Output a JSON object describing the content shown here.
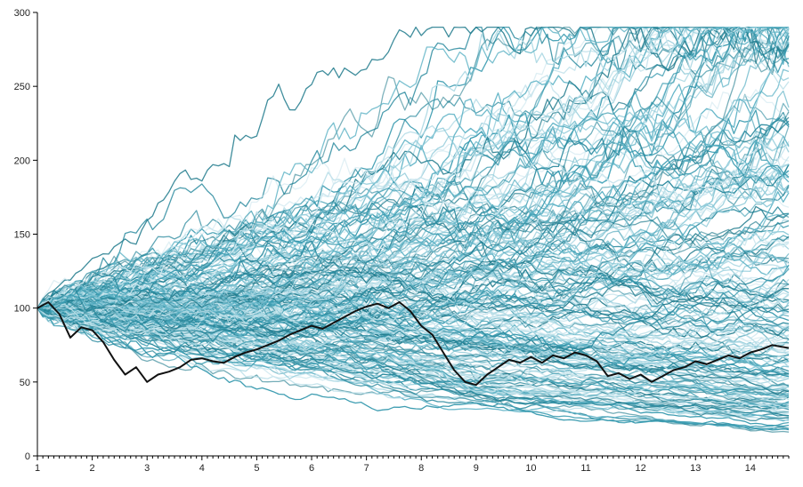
{
  "chart_data": {
    "type": "line",
    "title": "",
    "xlabel": "",
    "ylabel": "",
    "xlim": [
      1,
      14.7
    ],
    "ylim": [
      0,
      300
    ],
    "x_ticks": [
      "1",
      "2",
      "3",
      "4",
      "5",
      "6",
      "7",
      "8",
      "9",
      "10",
      "11",
      "12",
      "13",
      "14"
    ],
    "y_ticks": [
      "0",
      "50",
      "100",
      "150",
      "200",
      "250",
      "300"
    ],
    "grid": false,
    "legend": "none",
    "series_style": {
      "simulated_palette": [
        "#2b8a9e",
        "#3a9bb0",
        "#5fb3c6",
        "#8cc9d8",
        "#b4dce6",
        "#cbe6ee",
        "#1f7a8c"
      ],
      "highlight_color": "#111111"
    },
    "simulated_paths": {
      "count": 220,
      "start_value": 100,
      "steps_per_unit": 10,
      "description_visible": "many simulated paths fanning out from 100"
    },
    "highlight_series": {
      "x": [
        1.0,
        1.2,
        1.4,
        1.6,
        1.8,
        2.0,
        2.2,
        2.4,
        2.6,
        2.8,
        3.0,
        3.2,
        3.4,
        3.6,
        3.8,
        4.0,
        4.2,
        4.4,
        4.6,
        4.8,
        5.0,
        5.2,
        5.4,
        5.6,
        5.8,
        6.0,
        6.2,
        6.4,
        6.6,
        6.8,
        7.0,
        7.2,
        7.4,
        7.6,
        7.8,
        8.0,
        8.2,
        8.4,
        8.6,
        8.8,
        9.0,
        9.2,
        9.4,
        9.6,
        9.8,
        10.0,
        10.2,
        10.4,
        10.6,
        10.8,
        11.0,
        11.2,
        11.4,
        11.6,
        11.8,
        12.0,
        12.2,
        12.4,
        12.6,
        12.8,
        13.0,
        13.2,
        13.4,
        13.6,
        13.8,
        14.0,
        14.2,
        14.4,
        14.7
      ],
      "y": [
        100,
        104,
        96,
        80,
        87,
        85,
        77,
        65,
        55,
        60,
        50,
        55,
        57,
        60,
        65,
        66,
        64,
        63,
        67,
        70,
        72,
        75,
        78,
        82,
        85,
        88,
        86,
        90,
        94,
        98,
        101,
        103,
        100,
        104,
        98,
        88,
        82,
        70,
        58,
        50,
        48,
        55,
        60,
        65,
        63,
        67,
        63,
        68,
        66,
        70,
        68,
        64,
        54,
        56,
        52,
        55,
        50,
        54,
        58,
        60,
        64,
        62,
        65,
        68,
        66,
        70,
        72,
        75,
        73
      ]
    }
  }
}
